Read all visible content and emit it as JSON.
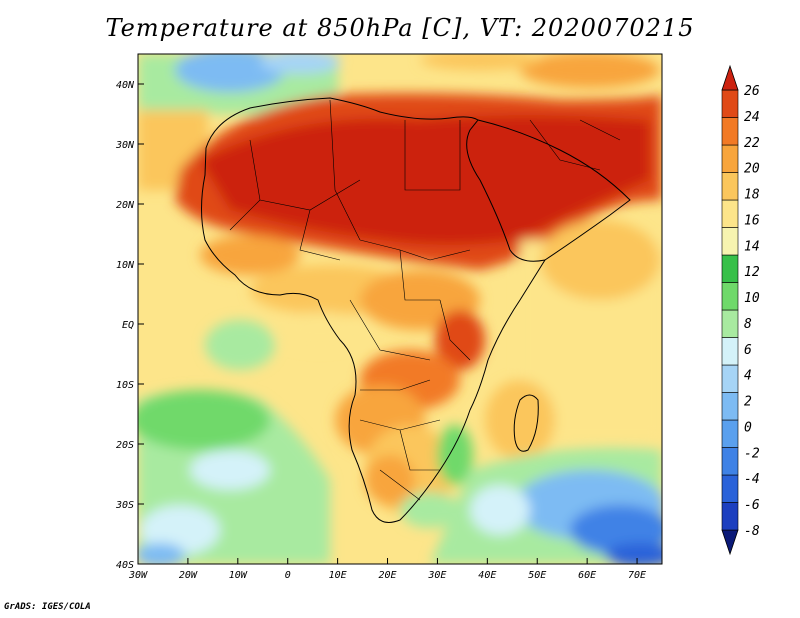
{
  "title": "Temperature at 850hPa [C], VT: 2020070215",
  "credit": "GrADS: IGES/COLA",
  "map": {
    "lon_range": [
      -30,
      75
    ],
    "lat_range": [
      -40,
      45
    ],
    "lon_ticks": [
      "30W",
      "20W",
      "10W",
      "0",
      "10E",
      "20E",
      "30E",
      "40E",
      "50E",
      "60E",
      "70E"
    ],
    "lat_ticks": [
      "40S",
      "30S",
      "20S",
      "10S",
      "EQ",
      "10N",
      "20N",
      "30N",
      "40N"
    ]
  },
  "colorbar": {
    "labels": [
      "-8",
      "-6",
      "-4",
      "-2",
      "0",
      "2",
      "4",
      "6",
      "8",
      "10",
      "12",
      "14",
      "16",
      "18",
      "20",
      "22",
      "24",
      "26"
    ],
    "colors": [
      "#0b1a78",
      "#1c3fbf",
      "#2a62d9",
      "#3f82e6",
      "#5aa0ee",
      "#7dbbf3",
      "#a6d4f6",
      "#d4f2f9",
      "#a8eaa0",
      "#6fd96a",
      "#37c049",
      "#f7f4b0",
      "#fde58a",
      "#fbc65c",
      "#f8a53c",
      "#f27a25",
      "#e04a17",
      "#cc2210"
    ]
  }
}
